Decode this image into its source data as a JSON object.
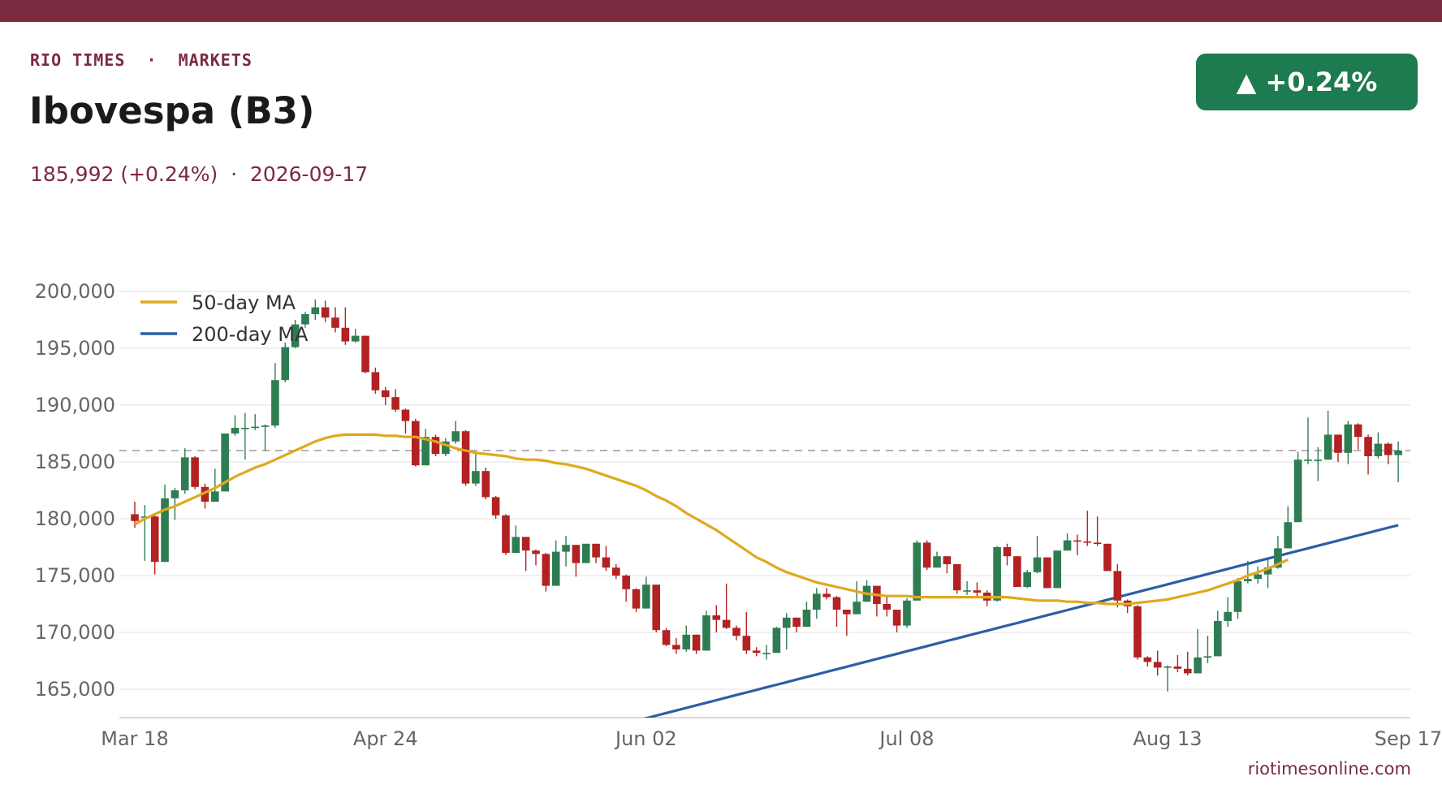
{
  "header": {
    "kicker": "RIO TIMES  ·  MARKETS",
    "title": "Ibovespa (B3)",
    "subtitle": "185,992 (+0.24%)  ·  2026-09-17",
    "badge": "▲ +0.24%"
  },
  "footer": {
    "site": "riotimesonline.com"
  },
  "colors": {
    "up": "#2e7d52",
    "down": "#b22222",
    "ma50": "#e0a81e",
    "ma200": "#2c5ea6",
    "accent": "#7b2a3f",
    "badge": "#1e7a4f"
  },
  "chart_data": {
    "type": "candlestick",
    "ylim": [
      162500,
      202000
    ],
    "y_ticks": [
      200000,
      195000,
      190000,
      185000,
      180000,
      175000,
      170000,
      165000
    ],
    "y_tick_labels": [
      "200,000",
      "195,000",
      "190,000",
      "185,000",
      "180,000",
      "175,000",
      "170,000",
      "165,000"
    ],
    "x_tick_labels": [
      "Mar 18",
      "Apr 24",
      "Jun 02",
      "Jul 08",
      "Aug 13",
      "Sep 17"
    ],
    "x_tick_index": [
      0,
      25,
      51,
      77,
      103,
      127
    ],
    "reference_line": 186000,
    "legend": [
      "50-day MA",
      "200-day MA"
    ],
    "legend_position": "top-left",
    "grid": true,
    "candles": [
      [
        180400,
        179800,
        181500,
        179200
      ],
      [
        180200,
        180200,
        181200,
        176300
      ],
      [
        180200,
        176200,
        180400,
        175100
      ],
      [
        176200,
        181800,
        183000,
        176200
      ],
      [
        181800,
        182500,
        182700,
        179900
      ],
      [
        182500,
        185400,
        186200,
        182200
      ],
      [
        185400,
        182800,
        185500,
        182600
      ],
      [
        182800,
        181500,
        183100,
        180900
      ],
      [
        181500,
        182400,
        184400,
        181500
      ],
      [
        182400,
        187500,
        187500,
        182400
      ],
      [
        187500,
        188000,
        189100,
        187300
      ],
      [
        188000,
        188000,
        189300,
        185200
      ],
      [
        188000,
        188100,
        189200,
        187800
      ],
      [
        188100,
        188200,
        188300,
        186000
      ],
      [
        188200,
        192200,
        193700,
        188000
      ],
      [
        192200,
        195100,
        195500,
        192000
      ],
      [
        195100,
        197100,
        197500,
        195000
      ],
      [
        197100,
        198000,
        198200,
        196800
      ],
      [
        198000,
        198600,
        199300,
        197500
      ],
      [
        198600,
        197700,
        199200,
        197300
      ],
      [
        197700,
        196800,
        198600,
        196400
      ],
      [
        196800,
        195600,
        198600,
        195300
      ],
      [
        195600,
        196100,
        196700,
        195500
      ],
      [
        196100,
        192900,
        196100,
        192800
      ],
      [
        192900,
        191300,
        193300,
        191000
      ],
      [
        191300,
        190700,
        191600,
        190000
      ],
      [
        190700,
        189600,
        191400,
        189400
      ],
      [
        189600,
        188600,
        189700,
        187500
      ],
      [
        188600,
        184700,
        188800,
        184600
      ],
      [
        184700,
        187200,
        187900,
        184700
      ],
      [
        187200,
        185700,
        187400,
        185500
      ],
      [
        185700,
        186800,
        187100,
        185500
      ],
      [
        186800,
        187700,
        188600,
        186600
      ],
      [
        187700,
        183100,
        187800,
        182900
      ],
      [
        183100,
        184200,
        185800,
        182900
      ],
      [
        184200,
        181900,
        184500,
        181700
      ],
      [
        181900,
        180300,
        182000,
        180000
      ],
      [
        180300,
        177000,
        180400,
        176800
      ],
      [
        177000,
        178400,
        179400,
        177000
      ],
      [
        178400,
        177200,
        178400,
        175400
      ],
      [
        177200,
        176900,
        177300,
        175900
      ],
      [
        176900,
        174100,
        177000,
        173600
      ],
      [
        174100,
        177100,
        178100,
        174100
      ],
      [
        177100,
        177700,
        178500,
        175800
      ],
      [
        177700,
        176100,
        177700,
        174900
      ],
      [
        176100,
        177800,
        177800,
        176100
      ],
      [
        177800,
        176600,
        177800,
        176100
      ],
      [
        176600,
        175700,
        177600,
        175400
      ],
      [
        175700,
        175000,
        176000,
        174700
      ],
      [
        175000,
        173800,
        175100,
        172700
      ],
      [
        173800,
        172100,
        173900,
        171800
      ],
      [
        172100,
        174200,
        174900,
        172100
      ],
      [
        174200,
        170200,
        174200,
        170000
      ],
      [
        170200,
        168900,
        170400,
        168800
      ],
      [
        168900,
        168500,
        169500,
        168100
      ],
      [
        168500,
        169800,
        170600,
        168300
      ],
      [
        169800,
        168400,
        169800,
        168100
      ],
      [
        168400,
        171500,
        171900,
        168400
      ],
      [
        171500,
        171100,
        172400,
        170000
      ],
      [
        171100,
        170400,
        174300,
        170300
      ],
      [
        170400,
        169700,
        170600,
        169300
      ],
      [
        169700,
        168400,
        171800,
        168100
      ],
      [
        168400,
        168200,
        168700,
        167900
      ],
      [
        168200,
        168200,
        168900,
        167600
      ],
      [
        168200,
        170400,
        170500,
        168200
      ],
      [
        170400,
        171300,
        171700,
        168500
      ],
      [
        171300,
        170500,
        171300,
        170000
      ],
      [
        170500,
        172000,
        172700,
        170500
      ],
      [
        172000,
        173400,
        173900,
        171200
      ],
      [
        173400,
        173100,
        173900,
        172900
      ],
      [
        173100,
        172000,
        173200,
        170500
      ],
      [
        172000,
        171600,
        172000,
        169700
      ],
      [
        171600,
        172700,
        174500,
        171600
      ],
      [
        172700,
        174100,
        174600,
        172700
      ],
      [
        174100,
        172500,
        174100,
        171400
      ],
      [
        172500,
        172000,
        173100,
        171400
      ],
      [
        172000,
        170600,
        172000,
        170000
      ],
      [
        170600,
        172800,
        173000,
        170400
      ],
      [
        172800,
        177900,
        178100,
        172800
      ],
      [
        177900,
        175700,
        178100,
        175500
      ],
      [
        175700,
        176700,
        177100,
        175700
      ],
      [
        176700,
        176000,
        176700,
        175200
      ],
      [
        176000,
        173700,
        176000,
        173400
      ],
      [
        173700,
        173700,
        174500,
        173300
      ],
      [
        173700,
        173500,
        174400,
        173100
      ],
      [
        173500,
        172800,
        173700,
        172300
      ],
      [
        172800,
        177500,
        177600,
        172700
      ],
      [
        177500,
        176700,
        177800,
        175900
      ],
      [
        176700,
        174000,
        176700,
        174000
      ],
      [
        174000,
        175300,
        175500,
        173900
      ],
      [
        175300,
        176600,
        178500,
        175200
      ],
      [
        176600,
        173900,
        176600,
        173900
      ],
      [
        173900,
        177200,
        177200,
        173900
      ],
      [
        177200,
        178100,
        178700,
        177200
      ],
      [
        178100,
        178000,
        178600,
        176800
      ],
      [
        178000,
        177900,
        180700,
        177600
      ],
      [
        177900,
        177800,
        180200,
        177600
      ],
      [
        177800,
        175400,
        177800,
        175400
      ],
      [
        175400,
        172800,
        176000,
        172200
      ],
      [
        172800,
        172300,
        172900,
        171700
      ],
      [
        172300,
        167800,
        172400,
        167600
      ],
      [
        167800,
        167400,
        167900,
        167000
      ],
      [
        167400,
        166900,
        168400,
        166200
      ],
      [
        166900,
        167000,
        167100,
        164800
      ],
      [
        167000,
        166800,
        168000,
        166500
      ],
      [
        166800,
        166400,
        168300,
        166200
      ],
      [
        166400,
        167800,
        170300,
        166400
      ],
      [
        167800,
        167900,
        169700,
        167300
      ],
      [
        167900,
        171000,
        171900,
        167900
      ],
      [
        171000,
        171800,
        173100,
        170500
      ],
      [
        171800,
        174500,
        174800,
        171200
      ],
      [
        174500,
        174700,
        176300,
        174300
      ],
      [
        174700,
        175100,
        175800,
        174300
      ],
      [
        175100,
        175700,
        176400,
        173900
      ],
      [
        175700,
        177400,
        178500,
        175600
      ],
      [
        177400,
        179700,
        181100,
        177400
      ],
      [
        179700,
        185200,
        185900,
        179700
      ],
      [
        185200,
        185200,
        188900,
        184800
      ],
      [
        185200,
        185200,
        186300,
        183300
      ],
      [
        185200,
        187400,
        189500,
        185200
      ],
      [
        187400,
        185800,
        187400,
        185000
      ],
      [
        185800,
        188300,
        188600,
        184800
      ],
      [
        188300,
        187200,
        188400,
        186100
      ],
      [
        187200,
        185500,
        187400,
        183900
      ],
      [
        185500,
        186600,
        187600,
        185300
      ],
      [
        186600,
        185600,
        186700,
        184800
      ],
      [
        185600,
        186000,
        186800,
        183200
      ]
    ],
    "ma50": [
      179500,
      180000,
      180400,
      180800,
      181100,
      181500,
      181900,
      182300,
      182700,
      183200,
      183700,
      184100,
      184500,
      184800,
      185200,
      185600,
      186000,
      186400,
      186800,
      187100,
      187300,
      187400,
      187400,
      187400,
      187400,
      187300,
      187300,
      187200,
      187200,
      187000,
      186800,
      186500,
      186200,
      186000,
      185800,
      185700,
      185600,
      185500,
      185300,
      185200,
      185200,
      185100,
      184900,
      184800,
      184600,
      184400,
      184100,
      183800,
      183500,
      183200,
      182900,
      182500,
      182000,
      181600,
      181100,
      180500,
      180000,
      179500,
      179000,
      178400,
      177800,
      177200,
      176600,
      176200,
      175700,
      175300,
      175000,
      174700,
      174400,
      174200,
      174000,
      173800,
      173600,
      173400,
      173300,
      173200,
      173200,
      173200,
      173100,
      173100,
      173100,
      173100,
      173100,
      173100,
      173100,
      173100,
      173100,
      173100,
      173000,
      172900,
      172800,
      172800,
      172800,
      172700,
      172700,
      172600,
      172600,
      172500,
      172500,
      172500,
      172600,
      172700,
      172800,
      172900,
      173100,
      173300,
      173500,
      173700,
      174000,
      174300,
      174600,
      175000,
      175300,
      175600,
      176000,
      176400
    ]
  }
}
